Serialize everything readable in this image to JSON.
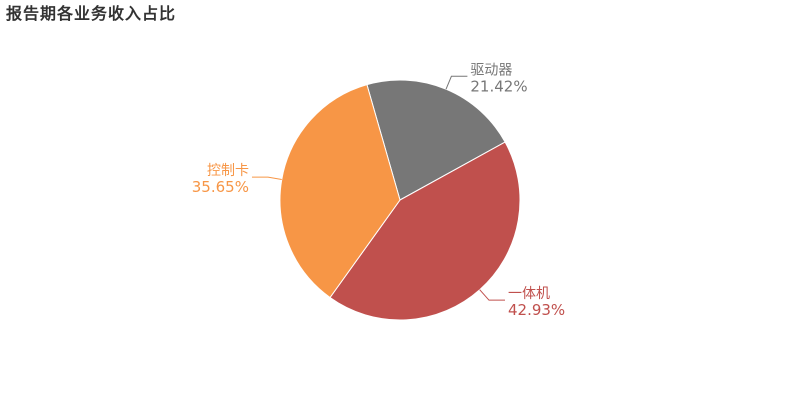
{
  "chart_data": {
    "type": "pie",
    "title": "报告期各业务收入占比",
    "start_angle_deg": -16,
    "direction": "clockwise",
    "legend": "none",
    "slices": [
      {
        "label": "驱动器",
        "value": 21.42,
        "percent_text": "21.42%",
        "color": "#777777"
      },
      {
        "label": "一体机",
        "value": 42.93,
        "percent_text": "42.93%",
        "color": "#c0504d"
      },
      {
        "label": "控制卡",
        "value": 35.65,
        "percent_text": "35.65%",
        "color": "#f79646"
      }
    ]
  }
}
